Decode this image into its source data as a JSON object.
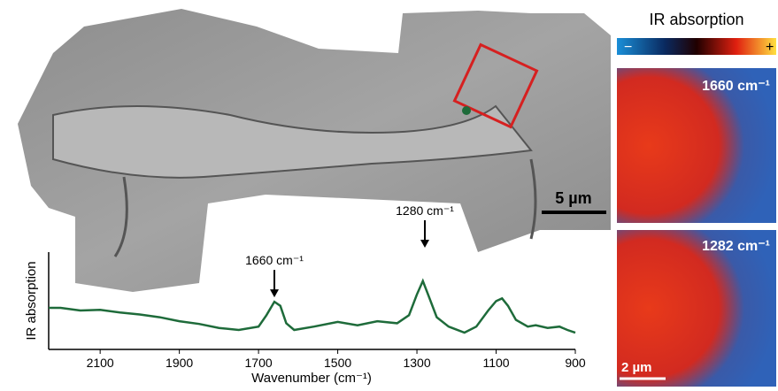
{
  "chart_data": {
    "type": "line",
    "x_label": "Wavenumber (cm⁻¹)",
    "y_label": "IR absorption",
    "x": [
      2230,
      2200,
      2150,
      2100,
      2050,
      2000,
      1950,
      1900,
      1850,
      1800,
      1750,
      1700,
      1680,
      1660,
      1645,
      1630,
      1610,
      1560,
      1500,
      1450,
      1400,
      1350,
      1320,
      1300,
      1285,
      1270,
      1250,
      1220,
      1180,
      1150,
      1120,
      1100,
      1085,
      1070,
      1050,
      1020,
      1000,
      970,
      940,
      920,
      900
    ],
    "series": [
      {
        "color": "#1e6b3a",
        "values": [
          0.47,
          0.47,
          0.43,
          0.44,
          0.4,
          0.37,
          0.33,
          0.27,
          0.23,
          0.17,
          0.14,
          0.19,
          0.36,
          0.56,
          0.5,
          0.24,
          0.14,
          0.19,
          0.26,
          0.21,
          0.27,
          0.24,
          0.36,
          0.67,
          0.87,
          0.64,
          0.33,
          0.19,
          0.1,
          0.19,
          0.43,
          0.57,
          0.61,
          0.5,
          0.29,
          0.19,
          0.21,
          0.17,
          0.19,
          0.14,
          0.1
        ]
      }
    ],
    "xlim": [
      2230,
      900
    ],
    "ylim": [
      -0.15,
      1.3
    ],
    "xticks": [
      2100,
      1900,
      1700,
      1500,
      1300,
      1100,
      900
    ],
    "annotations": [
      {
        "text": "1660 cm⁻¹",
        "x": 1660
      },
      {
        "text": "1280 cm⁻¹",
        "x": 1280
      }
    ]
  },
  "image": {
    "scale_bar": "5 µm"
  },
  "ir_maps": {
    "colorbar_title": "IR absorption",
    "colorbar_min": "−",
    "colorbar_max": "+",
    "maps": [
      "1660 cm⁻¹",
      "1282 cm⁻¹"
    ],
    "scale_bar": "2 µm"
  }
}
